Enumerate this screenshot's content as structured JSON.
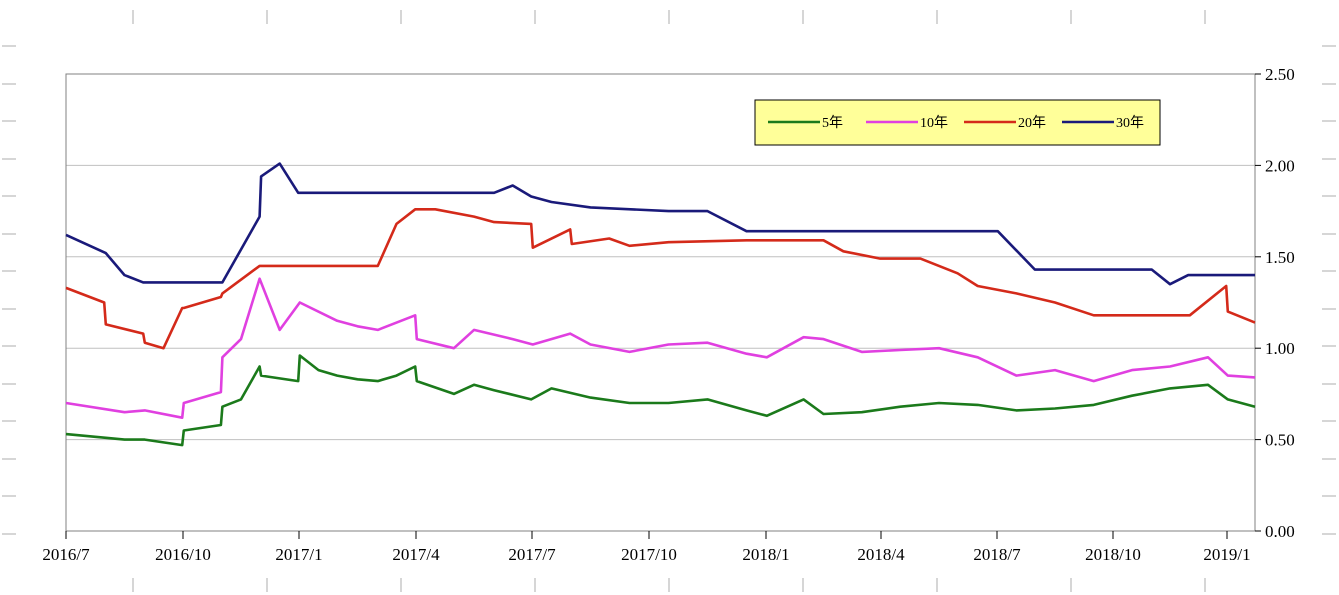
{
  "chart_data": {
    "type": "line",
    "title": "",
    "xlabel": "",
    "ylabel": "",
    "x_ticks": [
      "2016/7",
      "2016/10",
      "2017/1",
      "2017/4",
      "2017/7",
      "2017/10",
      "2018/1",
      "2018/4",
      "2018/7",
      "2018/10",
      "2019/1"
    ],
    "y_ticks": [
      "0.00",
      "0.50",
      "1.00",
      "1.50",
      "2.00",
      "2.50"
    ],
    "ylim": [
      0,
      2.5
    ],
    "xlim": [
      "2016/7",
      "2019/1 (mid)"
    ],
    "grid": "horizontal",
    "y_axis_side": "right",
    "legend_position": "top-right",
    "legend_background": "#ffff99",
    "series": [
      {
        "name": "5年",
        "color": "#1b7a1b",
        "points": [
          [
            "2016/7",
            0.53
          ],
          [
            "2016/8",
            0.5
          ],
          [
            "2016/9",
            0.5
          ],
          [
            "2016/9",
            0.47
          ],
          [
            "2016/10",
            0.55
          ],
          [
            "2016/10",
            0.58
          ],
          [
            "2016/11",
            0.68
          ],
          [
            "2016/11",
            0.72
          ],
          [
            "2016/11",
            0.9
          ],
          [
            "2016/12",
            0.85
          ],
          [
            "2016/12",
            0.82
          ],
          [
            "2017/1",
            0.96
          ],
          [
            "2017/1",
            0.88
          ],
          [
            "2017/1",
            0.85
          ],
          [
            "2017/2",
            0.83
          ],
          [
            "2017/3",
            0.82
          ],
          [
            "2017/3",
            0.85
          ],
          [
            "2017/3",
            0.9
          ],
          [
            "2017/4",
            0.82
          ],
          [
            "2017/4",
            0.75
          ],
          [
            "2017/5",
            0.8
          ],
          [
            "2017/6",
            0.77
          ],
          [
            "2017/6",
            0.72
          ],
          [
            "2017/7",
            0.78
          ],
          [
            "2017/8",
            0.73
          ],
          [
            "2017/9",
            0.7
          ],
          [
            "2017/10",
            0.7
          ],
          [
            "2017/11",
            0.72
          ],
          [
            "2017/12",
            0.66
          ],
          [
            "2018/1",
            0.63
          ],
          [
            "2018/1",
            0.72
          ],
          [
            "2018/2",
            0.64
          ],
          [
            "2018/3",
            0.65
          ],
          [
            "2018/4",
            0.68
          ],
          [
            "2018/5",
            0.7
          ],
          [
            "2018/6",
            0.69
          ],
          [
            "2018/7",
            0.66
          ],
          [
            "2018/8",
            0.67
          ],
          [
            "2018/9",
            0.69
          ],
          [
            "2018/10",
            0.74
          ],
          [
            "2018/11",
            0.78
          ],
          [
            "2018/12",
            0.8
          ],
          [
            "2019/1",
            0.72
          ],
          [
            "2019/1",
            0.68
          ]
        ]
      },
      {
        "name": "10年",
        "color": "#e040e0",
        "points": [
          [
            "2016/7",
            0.7
          ],
          [
            "2016/8",
            0.65
          ],
          [
            "2016/9",
            0.66
          ],
          [
            "2016/9",
            0.62
          ],
          [
            "2016/10",
            0.7
          ],
          [
            "2016/10",
            0.76
          ],
          [
            "2016/11",
            0.95
          ],
          [
            "2016/11",
            1.05
          ],
          [
            "2016/11",
            1.38
          ],
          [
            "2016/12",
            1.1
          ],
          [
            "2017/1",
            1.25
          ],
          [
            "2017/1",
            1.15
          ],
          [
            "2017/2",
            1.12
          ],
          [
            "2017/3",
            1.1
          ],
          [
            "2017/3",
            1.18
          ],
          [
            "2017/4",
            1.05
          ],
          [
            "2017/4",
            1.0
          ],
          [
            "2017/5",
            1.1
          ],
          [
            "2017/6",
            1.05
          ],
          [
            "2017/7",
            1.02
          ],
          [
            "2017/7",
            1.08
          ],
          [
            "2017/8",
            1.02
          ],
          [
            "2017/9",
            0.98
          ],
          [
            "2017/10",
            1.02
          ],
          [
            "2017/11",
            1.03
          ],
          [
            "2017/12",
            0.97
          ],
          [
            "2018/1",
            0.95
          ],
          [
            "2018/1",
            1.06
          ],
          [
            "2018/2",
            1.05
          ],
          [
            "2018/3",
            0.98
          ],
          [
            "2018/4",
            0.99
          ],
          [
            "2018/5",
            1.0
          ],
          [
            "2018/6",
            0.95
          ],
          [
            "2018/7",
            0.85
          ],
          [
            "2018/8",
            0.88
          ],
          [
            "2018/9",
            0.82
          ],
          [
            "2018/10",
            0.88
          ],
          [
            "2018/11",
            0.9
          ],
          [
            "2018/12",
            0.95
          ],
          [
            "2019/1",
            0.85
          ],
          [
            "2019/1",
            0.84
          ]
        ]
      },
      {
        "name": "20年",
        "color": "#d42a1a",
        "points": [
          [
            "2016/7",
            1.33
          ],
          [
            "2016/7",
            1.25
          ],
          [
            "2016/8",
            1.13
          ],
          [
            "2016/8",
            1.08
          ],
          [
            "2016/9",
            1.03
          ],
          [
            "2016/9",
            1.0
          ],
          [
            "2016/9",
            1.22
          ],
          [
            "2016/10",
            1.22
          ],
          [
            "2016/10",
            1.28
          ],
          [
            "2016/11",
            1.3
          ],
          [
            "2016/11",
            1.45
          ],
          [
            "2016/12",
            1.45
          ],
          [
            "2017/1",
            1.45
          ],
          [
            "2017/3",
            1.45
          ],
          [
            "2017/3",
            1.68
          ],
          [
            "2017/3",
            1.76
          ],
          [
            "2017/4",
            1.76
          ],
          [
            "2017/5",
            1.72
          ],
          [
            "2017/6",
            1.69
          ],
          [
            "2017/6",
            1.68
          ],
          [
            "2017/7",
            1.55
          ],
          [
            "2017/7",
            1.65
          ],
          [
            "2017/8",
            1.57
          ],
          [
            "2017/8",
            1.6
          ],
          [
            "2017/9",
            1.56
          ],
          [
            "2017/10",
            1.58
          ],
          [
            "2017/12",
            1.59
          ],
          [
            "2018/1",
            1.59
          ],
          [
            "2018/2",
            1.59
          ],
          [
            "2018/3",
            1.53
          ],
          [
            "2018/3",
            1.49
          ],
          [
            "2018/5",
            1.49
          ],
          [
            "2018/5",
            1.41
          ],
          [
            "2018/6",
            1.34
          ],
          [
            "2018/7",
            1.3
          ],
          [
            "2018/8",
            1.25
          ],
          [
            "2018/9",
            1.18
          ],
          [
            "2018/10",
            1.18
          ],
          [
            "2018/12",
            1.18
          ],
          [
            "2018/12",
            1.34
          ],
          [
            "2019/1",
            1.2
          ],
          [
            "2019/1",
            1.14
          ]
        ]
      },
      {
        "name": "30年",
        "color": "#1a1a7a",
        "points": [
          [
            "2016/7",
            1.62
          ],
          [
            "2016/8",
            1.52
          ],
          [
            "2016/8",
            1.4
          ],
          [
            "2016/8",
            1.36
          ],
          [
            "2016/11",
            1.36
          ],
          [
            "2016/11",
            1.72
          ],
          [
            "2016/12",
            1.94
          ],
          [
            "2016/12",
            2.01
          ],
          [
            "2016/12",
            1.85
          ],
          [
            "2017/6",
            1.85
          ],
          [
            "2017/6",
            1.89
          ],
          [
            "2017/6",
            1.83
          ],
          [
            "2017/7",
            1.8
          ],
          [
            "2017/8",
            1.77
          ],
          [
            "2017/10",
            1.75
          ],
          [
            "2017/11",
            1.75
          ],
          [
            "2017/12",
            1.64
          ],
          [
            "2018/7",
            1.64
          ],
          [
            "2018/7",
            1.43
          ],
          [
            "2018/11",
            1.43
          ],
          [
            "2018/11",
            1.35
          ],
          [
            "2018/11",
            1.4
          ],
          [
            "2019/1",
            1.4
          ]
        ]
      }
    ]
  }
}
